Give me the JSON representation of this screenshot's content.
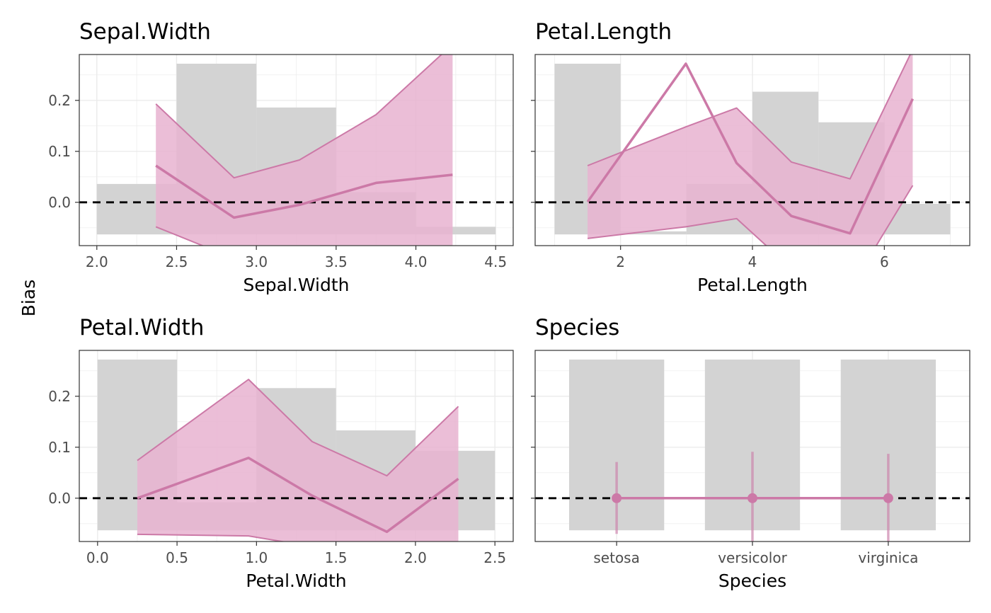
{
  "figure": {
    "y_label": "Bias",
    "colors": {
      "histogram": "#d3d3d3",
      "band_fill": "#e7b3d0",
      "band_line": "#cc79a7",
      "mean_line": "#cc79a7",
      "reference_line": "#000000"
    }
  },
  "chart_data": [
    {
      "type": "area",
      "title": "Sepal.Width",
      "xlabel": "Sepal.Width",
      "ylabel": "Bias",
      "xlim": [
        1.89,
        4.61
      ],
      "ylim": [
        -0.085,
        0.29
      ],
      "x_ticks": [
        2.0,
        2.5,
        3.0,
        3.5,
        4.0,
        4.5
      ],
      "x_tick_labels": [
        "2.0",
        "2.5",
        "3.0",
        "3.5",
        "4.0",
        "4.5"
      ],
      "y_ticks": [
        0.0,
        0.1,
        0.2
      ],
      "y_tick_labels": [
        "0.0",
        "0.1",
        "0.2"
      ],
      "reference_y": 0,
      "histogram": [
        {
          "x0": 2.0,
          "x1": 2.5,
          "y": 0.036
        },
        {
          "x0": 2.5,
          "x1": 3.0,
          "y": 0.272
        },
        {
          "x0": 3.0,
          "x1": 3.5,
          "y": 0.186
        },
        {
          "x0": 3.5,
          "x1": 4.0,
          "y": 0.02
        },
        {
          "x0": 4.0,
          "x1": 4.5,
          "y": -0.048
        }
      ],
      "histogram_base": -0.063,
      "series": [
        {
          "role": "upper",
          "x": [
            2.37,
            2.86,
            3.27,
            3.75,
            4.23
          ],
          "values": [
            0.193,
            0.048,
            0.083,
            0.172,
            0.31
          ]
        },
        {
          "role": "mean",
          "x": [
            2.37,
            2.86,
            3.27,
            3.75,
            4.23
          ],
          "values": [
            0.072,
            -0.03,
            -0.005,
            0.038,
            0.054
          ]
        },
        {
          "role": "lower",
          "x": [
            2.37,
            2.86,
            3.27,
            3.75,
            4.23
          ],
          "values": [
            -0.048,
            -0.11,
            -0.095,
            -0.1,
            -0.2
          ]
        }
      ]
    },
    {
      "type": "area",
      "title": "Petal.Length",
      "xlabel": "Petal.Length",
      "ylabel": "Bias",
      "xlim": [
        0.705,
        7.295
      ],
      "ylim": [
        -0.085,
        0.29
      ],
      "x_ticks": [
        2,
        4,
        6
      ],
      "x_tick_labels": [
        "2",
        "4",
        "6"
      ],
      "reference_y": 0,
      "histogram": [
        {
          "x0": 1,
          "x1": 2,
          "y": 0.272
        },
        {
          "x0": 2,
          "x1": 3,
          "y": -0.057
        },
        {
          "x0": 3,
          "x1": 4,
          "y": 0.036
        },
        {
          "x0": 4,
          "x1": 5,
          "y": 0.217
        },
        {
          "x0": 5,
          "x1": 6,
          "y": 0.157
        },
        {
          "x0": 6,
          "x1": 7,
          "y": -0.003
        }
      ],
      "histogram_base": -0.063,
      "series": [
        {
          "role": "upper",
          "x": [
            1.5,
            2.99,
            3.76,
            4.59,
            5.48,
            6.43
          ],
          "values": [
            0.072,
            0.148,
            0.185,
            0.079,
            0.046,
            0.3
          ]
        },
        {
          "role": "mean",
          "x": [
            1.5,
            2.99,
            3.76,
            4.59,
            5.48,
            6.43
          ],
          "values": [
            0.001,
            0.272,
            0.077,
            -0.027,
            -0.061,
            0.203
          ]
        },
        {
          "role": "lower",
          "x": [
            1.5,
            2.99,
            3.76,
            4.59,
            5.48,
            6.43
          ],
          "values": [
            -0.071,
            -0.048,
            -0.032,
            -0.13,
            -0.17,
            0.033
          ]
        }
      ]
    },
    {
      "type": "area",
      "title": "Petal.Width",
      "xlabel": "Petal.Width",
      "ylabel": "Bias",
      "xlim": [
        -0.115,
        2.615
      ],
      "ylim": [
        -0.085,
        0.29
      ],
      "x_ticks": [
        0.0,
        0.5,
        1.0,
        1.5,
        2.0,
        2.5
      ],
      "x_tick_labels": [
        "0.0",
        "0.5",
        "1.0",
        "1.5",
        "2.0",
        "2.5"
      ],
      "y_ticks": [
        0.0,
        0.1,
        0.2
      ],
      "y_tick_labels": [
        "0.0",
        "0.1",
        "0.2"
      ],
      "reference_y": 0,
      "histogram": [
        {
          "x0": 0.0,
          "x1": 0.5,
          "y": 0.272
        },
        {
          "x0": 0.5,
          "x1": 1.0,
          "y": -0.008
        },
        {
          "x0": 1.0,
          "x1": 1.5,
          "y": 0.216
        },
        {
          "x0": 1.5,
          "x1": 2.0,
          "y": 0.133
        },
        {
          "x0": 2.0,
          "x1": 2.5,
          "y": 0.093
        }
      ],
      "histogram_base": -0.063,
      "series": [
        {
          "role": "upper",
          "x": [
            0.25,
            0.95,
            1.35,
            1.82,
            2.27
          ],
          "values": [
            0.074,
            0.233,
            0.111,
            0.044,
            0.18
          ]
        },
        {
          "role": "mean",
          "x": [
            0.25,
            0.95,
            1.35,
            1.82,
            2.27
          ],
          "values": [
            0.0,
            0.079,
            0.005,
            -0.066,
            0.038
          ]
        },
        {
          "role": "lower",
          "x": [
            0.25,
            0.95,
            1.35,
            1.82,
            2.27
          ],
          "values": [
            -0.071,
            -0.074,
            -0.095,
            -0.15,
            -0.1
          ]
        }
      ]
    },
    {
      "type": "scatter",
      "title": "Species",
      "xlabel": "Species",
      "ylabel": "Bias",
      "ylim": [
        -0.085,
        0.29
      ],
      "categories": [
        "setosa",
        "versicolor",
        "virginica"
      ],
      "reference_y": 0,
      "bars": [
        {
          "category": "setosa",
          "y": 0.272
        },
        {
          "category": "versicolor",
          "y": 0.272
        },
        {
          "category": "virginica",
          "y": 0.272
        }
      ],
      "histogram_base": -0.063,
      "points": [
        {
          "category": "setosa",
          "mean": 0.0,
          "upper": 0.071,
          "lower": -0.07
        },
        {
          "category": "versicolor",
          "mean": 0.0,
          "upper": 0.091,
          "lower": -0.1
        },
        {
          "category": "virginica",
          "mean": 0.0,
          "upper": 0.087,
          "lower": -0.1
        }
      ]
    }
  ]
}
